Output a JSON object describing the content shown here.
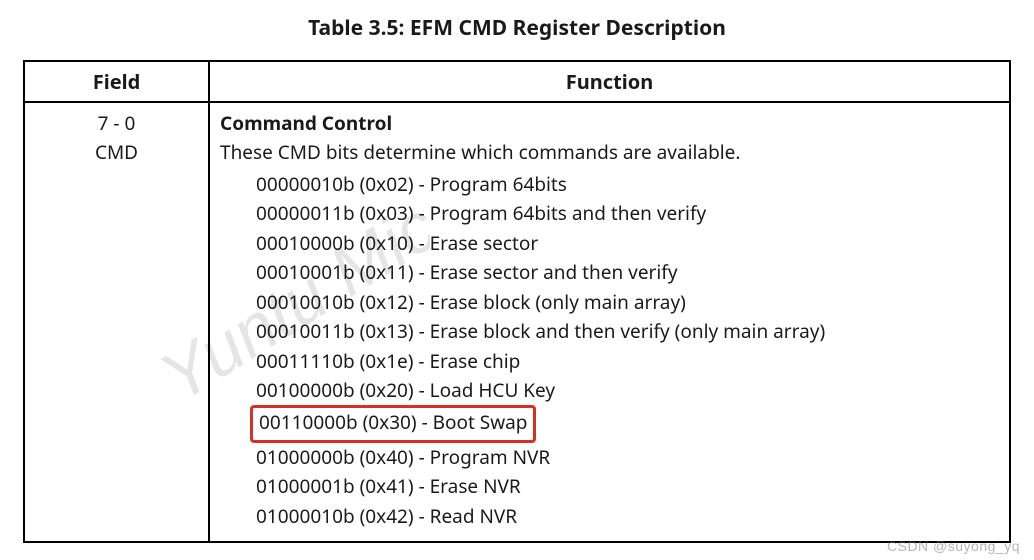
{
  "title": "Table 3.5:  EFM CMD Register Description",
  "headers": {
    "field": "Field",
    "function": "Function"
  },
  "field": {
    "bits": "7 - 0",
    "name": "CMD"
  },
  "function": {
    "heading": "Command Control",
    "description": "These CMD bits determine which commands are available.",
    "items": [
      {
        "code": "00000010b (0x02)",
        "desc": "Program 64bits",
        "highlight": false
      },
      {
        "code": "00000011b (0x03)",
        "desc": "Program 64bits and then verify",
        "highlight": false
      },
      {
        "code": "00010000b (0x10)",
        "desc": "Erase sector",
        "highlight": false
      },
      {
        "code": "00010001b (0x11)",
        "desc": "Erase sector and then verify",
        "highlight": false
      },
      {
        "code": "00010010b (0x12)",
        "desc": "Erase block (only main array)",
        "highlight": false
      },
      {
        "code": "00010011b (0x13)",
        "desc": "Erase block and then verify (only main array)",
        "highlight": false
      },
      {
        "code": "00011110b (0x1e)",
        "desc": "Erase chip",
        "highlight": false
      },
      {
        "code": "00100000b (0x20)",
        "desc": "Load HCU Key",
        "highlight": false
      },
      {
        "code": "00110000b (0x30)",
        "desc": "Boot Swap",
        "highlight": true
      },
      {
        "code": "01000000b (0x40)",
        "desc": "Program NVR",
        "highlight": false
      },
      {
        "code": "01000001b (0x41)",
        "desc": "Erase NVR",
        "highlight": false
      },
      {
        "code": "01000010b (0x42)",
        "desc": "Read NVR",
        "highlight": false
      }
    ]
  },
  "watermark_text": "Yuntu Micro",
  "credit": "CSDN @suyong_yq",
  "colors": {
    "highlight_border": "#d93025",
    "text": "#1a1a1a",
    "watermark": "rgba(0,0,0,0.10)",
    "credit": "rgba(120,120,120,0.55)"
  }
}
